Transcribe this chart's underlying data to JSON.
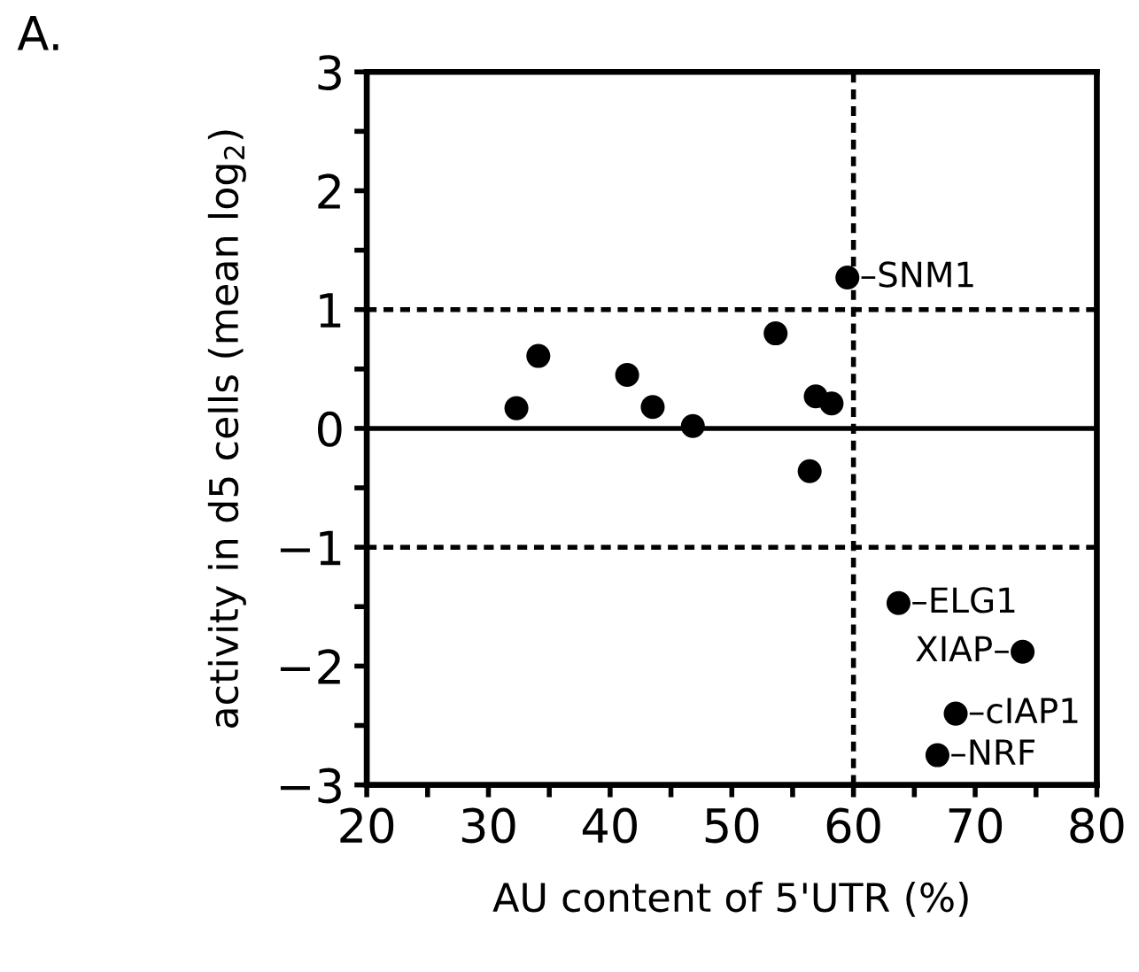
{
  "chart_data": {
    "type": "scatter",
    "title": "A.",
    "xlabel": "AU content of 5'UTR (%)",
    "ylabel": "activity in d5 cells (mean log$_{2}$)",
    "x": [
      32.3,
      34.1,
      41.4,
      43.5,
      46.8,
      53.6,
      56.9,
      58.2,
      56.4,
      59.5,
      63.7,
      73.9,
      68.4,
      66.9
    ],
    "series": [
      {
        "color": "#000000",
        "values": [
          0.17,
          0.61,
          0.45,
          0.18,
          0.02,
          0.8,
          0.27,
          0.21,
          -0.36,
          1.27,
          -1.47,
          -1.88,
          -2.4,
          -2.75
        ]
      }
    ],
    "marker": "circle",
    "xlim": [
      20,
      80
    ],
    "ylim": [
      -3,
      3
    ],
    "xticks": [
      20,
      {
        "value": 25,
        "label": null
      },
      30,
      {
        "value": 35,
        "label": null
      },
      40,
      {
        "value": 45,
        "label": null
      },
      50,
      {
        "value": 55,
        "label": null
      },
      60,
      {
        "value": 65,
        "label": null
      },
      70,
      {
        "value": 75,
        "label": null
      },
      80
    ],
    "yticks": [
      {
        "value": -3,
        "label": "−3"
      },
      {
        "value": -2.5,
        "label": null
      },
      {
        "value": -2,
        "label": "−2"
      },
      {
        "value": -1.5,
        "label": null
      },
      {
        "value": -1,
        "label": "−1"
      },
      {
        "value": -0.5,
        "label": null
      },
      0,
      {
        "value": 0.5,
        "label": null
      },
      1,
      {
        "value": 1.5,
        "label": null
      },
      2,
      {
        "value": 2.5,
        "label": null
      },
      3
    ],
    "ref_lines": [
      {
        "axis": "y",
        "value": 1,
        "color": "#000000",
        "line_style": "dashed"
      },
      {
        "axis": "y",
        "value": 0,
        "color": "#000000",
        "line_style": "solid"
      },
      {
        "axis": "y",
        "value": -1,
        "color": "#000000",
        "line_style": "dashed"
      },
      {
        "axis": "x",
        "value": 60,
        "color": "#000000",
        "line_style": "dashed"
      }
    ],
    "annotations": [
      {
        "text": "–SNM1",
        "x": 59.5,
        "y": 1.27
      },
      {
        "text": "–ELG1",
        "x": 63.7,
        "y": -1.47
      },
      {
        "text": "XIAP–",
        "x": 73.9,
        "y": -1.88
      },
      {
        "text": "–cIAP1",
        "x": 68.4,
        "y": -2.4
      },
      {
        "text": "–NRF",
        "x": 66.9,
        "y": -2.75
      }
    ]
  }
}
